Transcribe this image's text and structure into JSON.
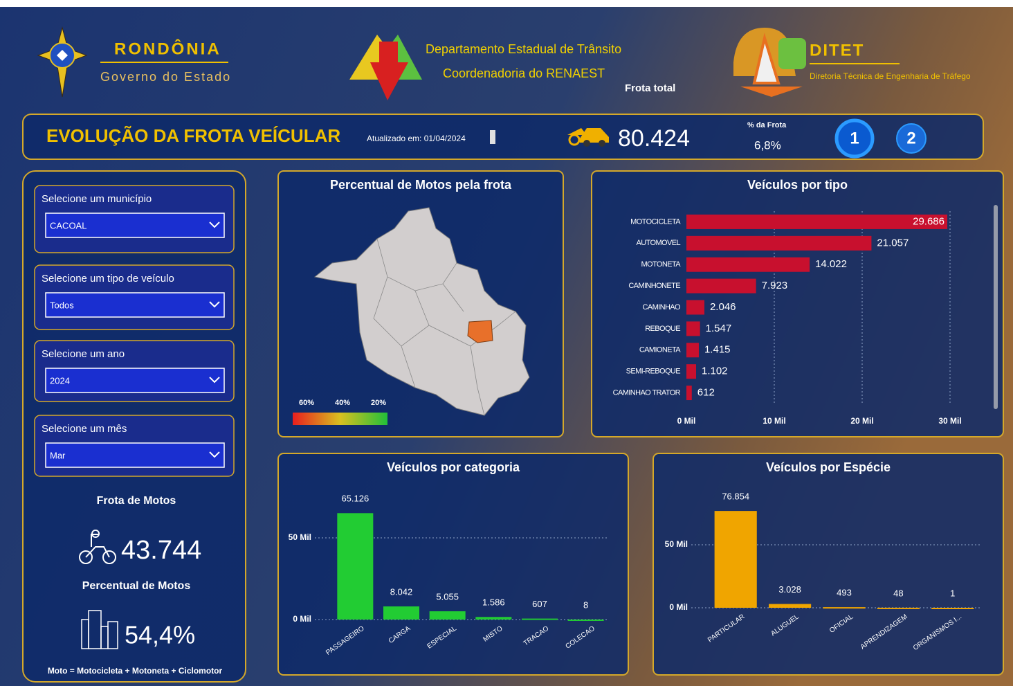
{
  "header": {
    "state_name": "RONDÔNIA",
    "state_subtitle": "Governo do Estado",
    "agency_line1": "Departamento Estadual de Trânsito",
    "agency_line2": "Coordenadoria do RENAEST",
    "frota_total_label": "Frota total",
    "ditet_name": "DITET",
    "ditet_subtitle": "Diretoria Técnica de Engenharia de Tráfego"
  },
  "banner": {
    "title": "EVOLUÇÃO DA FROTA VEÍCULAR",
    "updated": "Atualizado em: 01/04/2024",
    "frota_total": "80.424",
    "share_label": "% da Frota",
    "share_value": "6,8%",
    "pages": [
      "1",
      "2"
    ]
  },
  "filters": [
    {
      "label": "Selecione um município",
      "value": "CACOAL"
    },
    {
      "label": "Selecione um tipo de veículo",
      "value": "Todos"
    },
    {
      "label": "Selecione um ano",
      "value": "2024"
    },
    {
      "label": "Selecione um mês",
      "value": "Mar"
    }
  ],
  "summary": {
    "motos_label": "Frota de Motos",
    "motos_value": "43.744",
    "percent_label": "Percentual de Motos",
    "percent_value": "54,4%",
    "footnote": "Moto = Motocicleta + Motoneta + Ciclomotor"
  },
  "chart_data": [
    {
      "type": "map",
      "title": "Percentual de Motos pela frota",
      "legend": [
        {
          "label": "60%",
          "color": "#e81e1e"
        },
        {
          "label": "40%",
          "color": "#d8c020"
        },
        {
          "label": "20%",
          "color": "#22c03a"
        }
      ],
      "highlight_color": "#e8702a"
    },
    {
      "type": "bar",
      "orientation": "horizontal",
      "title": "Veículos por tipo",
      "categories": [
        "MOTOCICLETA",
        "AUTOMOVEL",
        "MOTONETA",
        "CAMINHONETE",
        "CAMINHAO",
        "REBOQUE",
        "CAMIONETA",
        "SEMI-REBOQUE",
        "CAMINHAO TRATOR"
      ],
      "values": [
        29686,
        21057,
        14022,
        7923,
        2046,
        1547,
        1415,
        1102,
        612
      ],
      "value_labels": [
        "29.686",
        "21.057",
        "14.022",
        "7.923",
        "2.046",
        "1.547",
        "1.415",
        "1.102",
        "612"
      ],
      "color": "#c8102e",
      "xlim": [
        0,
        30000
      ],
      "xticks": [
        {
          "value": 0,
          "label": "0 Mil"
        },
        {
          "value": 10000,
          "label": "10 Mil"
        },
        {
          "value": 20000,
          "label": "20 Mil"
        },
        {
          "value": 30000,
          "label": "30 Mil"
        }
      ],
      "grid": true
    },
    {
      "type": "bar",
      "orientation": "vertical",
      "title": "Veículos por categoria",
      "categories": [
        "PASSAGEIRO",
        "CARGA",
        "ESPECIAL",
        "MISTO",
        "TRACAO",
        "COLECAO"
      ],
      "values": [
        65126,
        8042,
        5055,
        1586,
        607,
        8
      ],
      "value_labels": [
        "65.126",
        "8.042",
        "5.055",
        "1.586",
        "607",
        "8"
      ],
      "color": "#22cc33",
      "ylim": [
        0,
        70000
      ],
      "yticks": [
        {
          "value": 0,
          "label": "0 Mil"
        },
        {
          "value": 50000,
          "label": "50 Mil"
        }
      ],
      "grid": true
    },
    {
      "type": "bar",
      "orientation": "vertical",
      "title": "Veículos por Espécie",
      "categories": [
        "PARTICULAR",
        "ALUGUEL",
        "OFICIAL",
        "APRENDIZAGEM",
        "ORGANISMOS I..."
      ],
      "values": [
        76854,
        3028,
        493,
        48,
        1
      ],
      "value_labels": [
        "76.854",
        "3.028",
        "493",
        "48",
        "1"
      ],
      "color": "#f0a500",
      "ylim": [
        0,
        85000
      ],
      "yticks": [
        {
          "value": 0,
          "label": "0 Mil"
        },
        {
          "value": 50000,
          "label": "50 Mil"
        }
      ],
      "grid": true
    }
  ]
}
